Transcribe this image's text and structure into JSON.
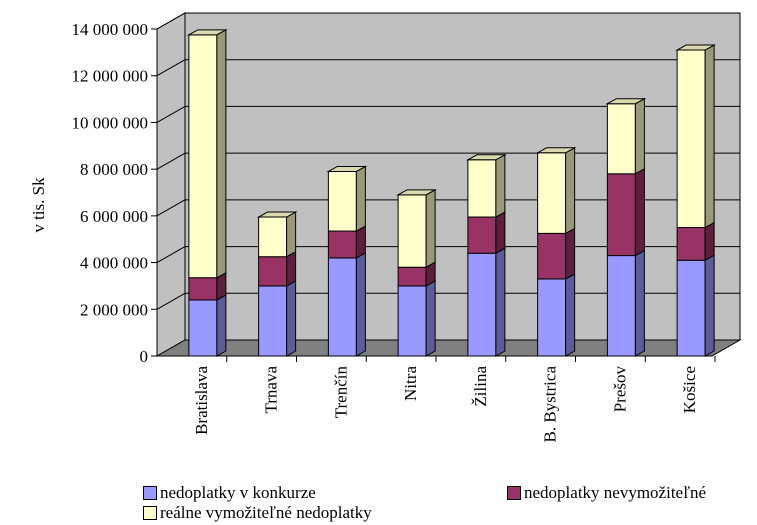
{
  "chart_data": {
    "type": "bar",
    "stacked": true,
    "three_d": true,
    "categories": [
      "Bratislava",
      "Trnava",
      "Trenčín",
      "Nitra",
      "Žilina",
      "B. Bystrica",
      "Prešov",
      "Košice"
    ],
    "series": [
      {
        "name": "nedoplatky v konkurze",
        "color": "#9999ff",
        "values": [
          2400000,
          3000000,
          4200000,
          3000000,
          4400000,
          3300000,
          4300000,
          4100000
        ]
      },
      {
        "name": "nedoplatky nevymožiteľné",
        "color": "#993366",
        "values": [
          950000,
          1250000,
          1150000,
          800000,
          1550000,
          1950000,
          3500000,
          1400000
        ]
      },
      {
        "name": "reálne vymožiteľné nedoplatky",
        "color": "#ffffcc",
        "values": [
          10400000,
          1700000,
          2550000,
          3100000,
          2450000,
          3450000,
          3000000,
          7600000
        ]
      }
    ],
    "ylabel": "v tis. Sk",
    "ylim": [
      0,
      14000000
    ],
    "yticks": [
      "0",
      "2 000 000",
      "4 000 000",
      "6 000 000",
      "8 000 000",
      "10 000 000",
      "12 000 000",
      "14 000 000"
    ],
    "grid": true,
    "legend_position": "bottom"
  },
  "legend": {
    "item1": "nedoplatky v konkurze",
    "item2": "nedoplatky nevymožiteľné",
    "item3": "reálne vymožiteľné nedoplatky"
  },
  "colors": {
    "wall": "#c0c0c0",
    "floor": "#808080",
    "grid": "#000000"
  }
}
